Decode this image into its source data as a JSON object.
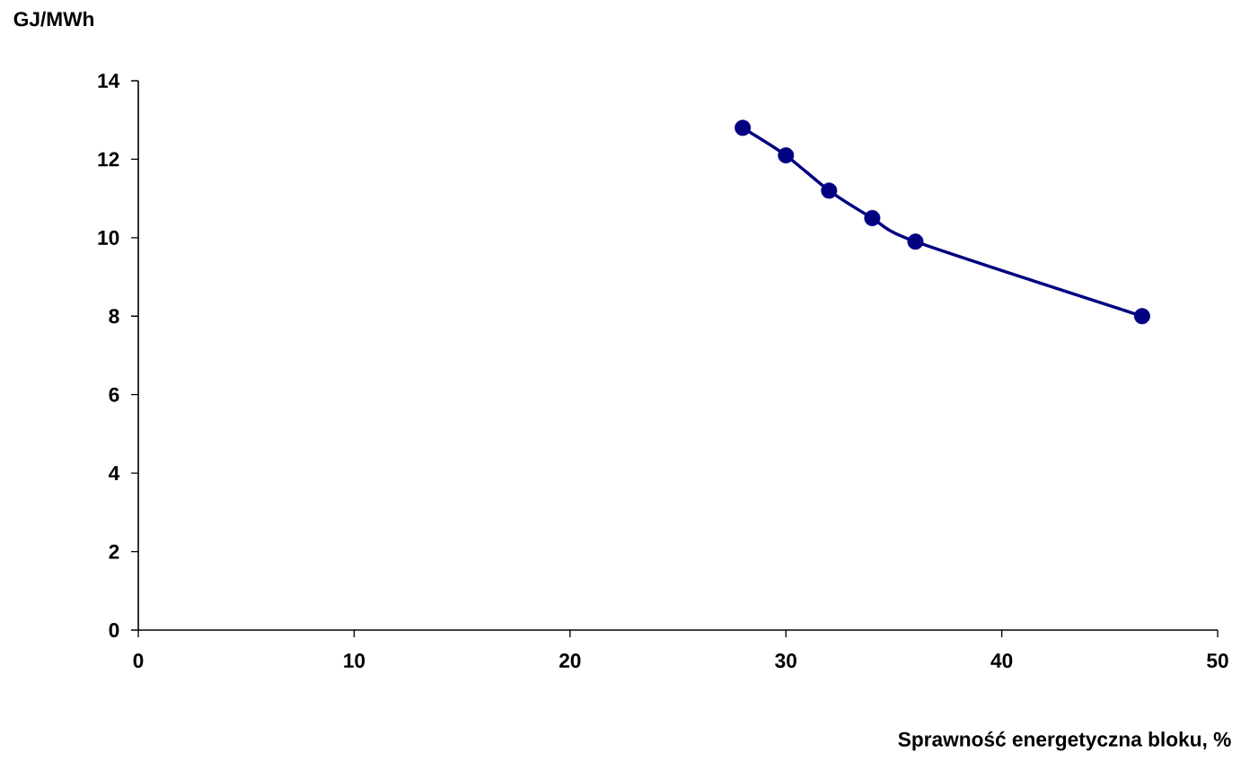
{
  "chart_data": {
    "type": "line",
    "xlabel": "Sprawność energetyczna bloku, %",
    "ylabel": "GJ/MWh",
    "x": [
      28,
      30,
      32,
      34,
      36,
      46.5
    ],
    "series": [
      {
        "color": "#000080",
        "values": [
          12.8,
          12.1,
          11.2,
          10.5,
          9.9,
          8.0
        ]
      }
    ],
    "xlim": [
      0,
      50
    ],
    "xticks": [
      0,
      10,
      20,
      30,
      40,
      50
    ],
    "ylim": [
      0,
      14
    ],
    "yticks": [
      0,
      2,
      4,
      6,
      8,
      10,
      12,
      14
    ],
    "grid": false,
    "marker": "circle",
    "line_style": "solid"
  }
}
